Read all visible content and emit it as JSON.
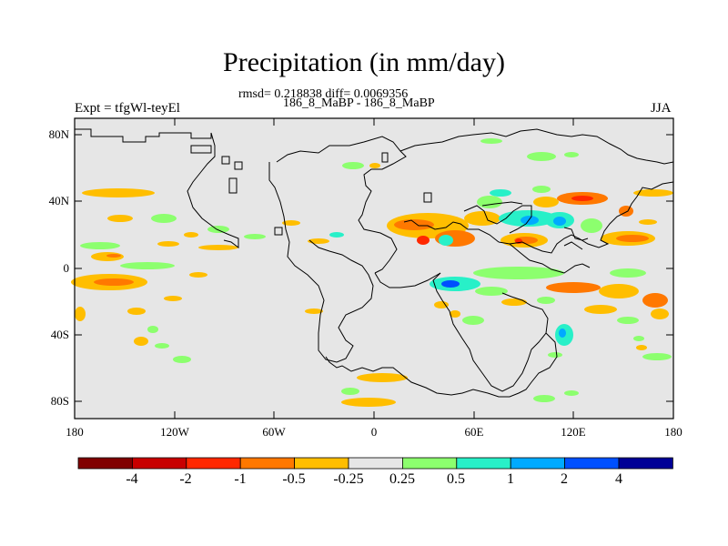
{
  "title": "Precipitation (in mm/day)",
  "subtitle_stats": "rmsd= 0.218838 diff= 0.0069356",
  "subtitle_cases": "186_8_MaBP - 186_8_MaBP",
  "left_label": "Expt = tfgWl-teyEl",
  "right_label": "JJA",
  "lat_ticks": [
    "80N",
    "40N",
    "0",
    "40S",
    "80S"
  ],
  "lon_ticks": [
    "180",
    "120W",
    "60W",
    "0",
    "60E",
    "120E",
    "180"
  ],
  "colorbar": {
    "colors": [
      "#800000",
      "#c80000",
      "#ff2800",
      "#ff7800",
      "#ffbe00",
      "#e6e6e6",
      "#8cff6e",
      "#28f0c8",
      "#00aaff",
      "#0050ff",
      "#000096"
    ],
    "labels": [
      "-4",
      "-2",
      "-1",
      "-0.5",
      "-0.25",
      "0.25",
      "0.5",
      "1",
      "2",
      "4"
    ]
  }
}
